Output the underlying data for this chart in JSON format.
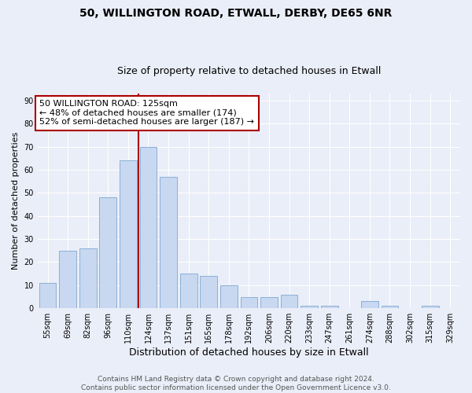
{
  "title1": "50, WILLINGTON ROAD, ETWALL, DERBY, DE65 6NR",
  "title2": "Size of property relative to detached houses in Etwall",
  "xlabel": "Distribution of detached houses by size in Etwall",
  "ylabel": "Number of detached properties",
  "categories": [
    "55sqm",
    "69sqm",
    "82sqm",
    "96sqm",
    "110sqm",
    "124sqm",
    "137sqm",
    "151sqm",
    "165sqm",
    "178sqm",
    "192sqm",
    "206sqm",
    "220sqm",
    "233sqm",
    "247sqm",
    "261sqm",
    "274sqm",
    "288sqm",
    "302sqm",
    "315sqm",
    "329sqm"
  ],
  "values": [
    11,
    25,
    26,
    48,
    64,
    70,
    57,
    15,
    14,
    10,
    5,
    5,
    6,
    1,
    1,
    0,
    3,
    1,
    0,
    1,
    0
  ],
  "bar_color": "#c8d8f0",
  "bar_edge_color": "#8ab0d8",
  "vline_color": "#aa0000",
  "annotation_text": "50 WILLINGTON ROAD: 125sqm\n← 48% of detached houses are smaller (174)\n52% of semi-detached houses are larger (187) →",
  "annotation_box_color": "#ffffff",
  "annotation_box_edge_color": "#aa0000",
  "ylim": [
    0,
    93
  ],
  "yticks": [
    0,
    10,
    20,
    30,
    40,
    50,
    60,
    70,
    80,
    90
  ],
  "footer": "Contains HM Land Registry data © Crown copyright and database right 2024.\nContains public sector information licensed under the Open Government Licence v3.0.",
  "bg_color": "#eaeef8",
  "grid_color": "#ffffff",
  "title1_fontsize": 10,
  "title2_fontsize": 9,
  "xlabel_fontsize": 9,
  "ylabel_fontsize": 8,
  "tick_fontsize": 7,
  "annotation_fontsize": 8,
  "footer_fontsize": 6.5
}
